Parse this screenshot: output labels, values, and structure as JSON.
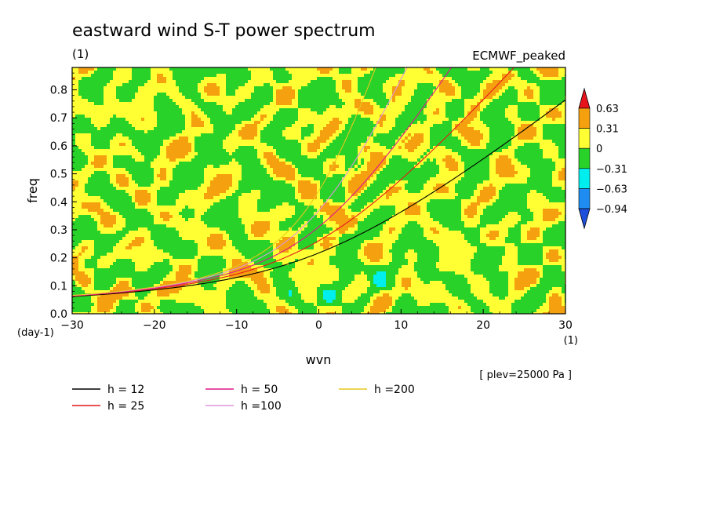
{
  "chart_data": {
    "type": "heatmap",
    "title": "eastward wind S-T power spectrum",
    "subtitle_left": "(1)",
    "subtitle_right": "ECMWF_peaked",
    "xlabel": "wvn",
    "ylabel": "freq",
    "x_unit": "(1)",
    "y_unit": "(day-1)",
    "xlim": [
      -30,
      30
    ],
    "ylim": [
      0,
      0.88
    ],
    "x_ticks": [
      -30,
      -20,
      -10,
      0,
      10,
      20,
      30
    ],
    "x_tick_labels": [
      "−30",
      "−20",
      "−10",
      "0",
      "10",
      "20",
      "30"
    ],
    "y_ticks": [
      0,
      0.1,
      0.2,
      0.3,
      0.4,
      0.5,
      0.6,
      0.7,
      0.8
    ],
    "y_tick_labels": [
      "0.0",
      "0.1",
      "0.2",
      "0.3",
      "0.4",
      "0.5",
      "0.6",
      "0.7",
      "0.8"
    ],
    "annotation": "[ plev=25000 Pa ]",
    "colorbar": {
      "levels": [
        0.63,
        0.31,
        0,
        -0.31,
        -0.63,
        -0.94
      ],
      "labels": [
        "0.63",
        "0.31",
        "0",
        "−0.31",
        "−0.63",
        "−0.94"
      ],
      "colors": [
        "#e8141c",
        "#f5a00f",
        "#ffff33",
        "#28d228",
        "#00eeee",
        "#1e8cf0",
        "#1e50dc"
      ]
    },
    "series": [
      {
        "name": "h = 12",
        "h": 12,
        "color": "#000000"
      },
      {
        "name": "h = 25",
        "h": 25,
        "color": "#e41a1c"
      },
      {
        "name": "h = 50",
        "h": 50,
        "color": "#e0168c"
      },
      {
        "name": "h =100",
        "h": 100,
        "color": "#dc96dc"
      },
      {
        "name": "h =200",
        "h": 200,
        "color": "#e6c81e"
      }
    ]
  }
}
